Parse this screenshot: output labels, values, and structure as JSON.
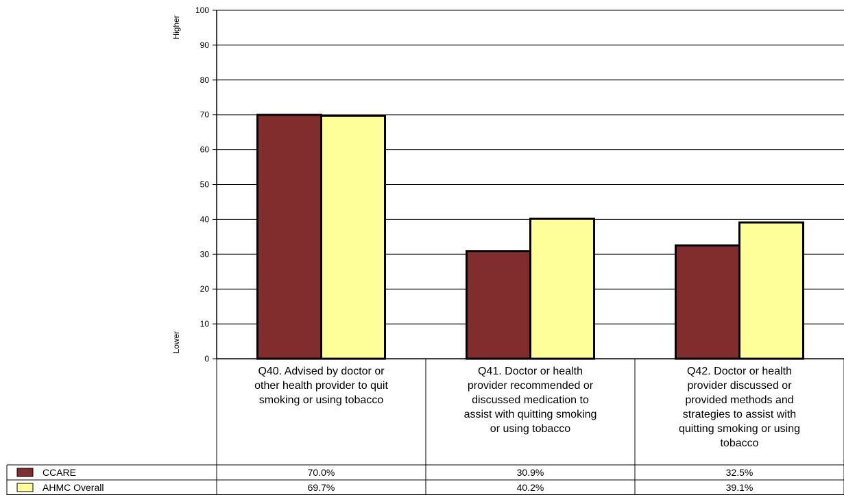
{
  "chart_data": {
    "type": "bar",
    "title": "",
    "xlabel": "",
    "ylabel": "",
    "y_top_label": "Higher",
    "y_bottom_label": "Lower",
    "ylim": [
      0,
      100
    ],
    "yticks": [
      0,
      10,
      20,
      30,
      40,
      50,
      60,
      70,
      80,
      90,
      100
    ],
    "grid": true,
    "categories": [
      "Q40. Advised by doctor or other health provider to quit smoking or using tobacco",
      "Q41. Doctor or health provider recommended or discussed medication to assist with quitting smoking or using tobacco",
      "Q42. Doctor or health provider discussed or provided methods and strategies to assist with quitting smoking or using tobacco"
    ],
    "category_lines": [
      [
        "Q40. Advised by doctor or",
        "other health provider to quit",
        "smoking or using tobacco"
      ],
      [
        "Q41. Doctor or health",
        "provider recommended or",
        "discussed medication to",
        "assist with quitting smoking",
        "or using tobacco"
      ],
      [
        "Q42. Doctor or health",
        "provider discussed or",
        "provided methods and",
        "strategies to assist with",
        "quitting smoking or using",
        "tobacco"
      ]
    ],
    "series": [
      {
        "name": "CCARE",
        "color": "#822d2d",
        "values": [
          70.0,
          30.9,
          32.5
        ],
        "labels": [
          "70.0%",
          "30.9%",
          "32.5%"
        ]
      },
      {
        "name": "AHMC Overall",
        "color": "#ffff99",
        "values": [
          69.7,
          40.2,
          39.1
        ],
        "labels": [
          "69.7%",
          "40.2%",
          "39.1%"
        ]
      }
    ]
  }
}
